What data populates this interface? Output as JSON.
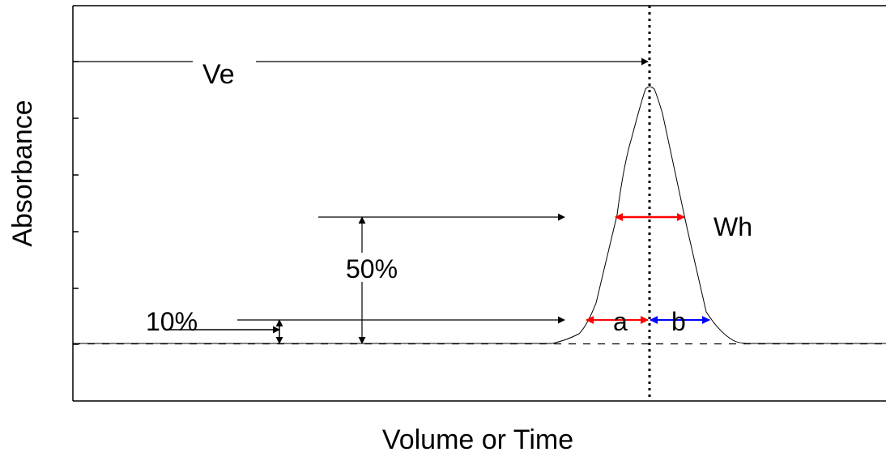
{
  "labels": {
    "y_axis": "Absorbance",
    "x_axis": "Volume or Time",
    "ve": "Ve",
    "wh": "Wh",
    "fifty": "50%",
    "ten": "10%",
    "a": "a",
    "b": "b"
  },
  "colors": {
    "line": "#000000",
    "red_arrow": "#ff0000",
    "blue_arrow": "#0000ff",
    "background": "#ffffff"
  }
}
